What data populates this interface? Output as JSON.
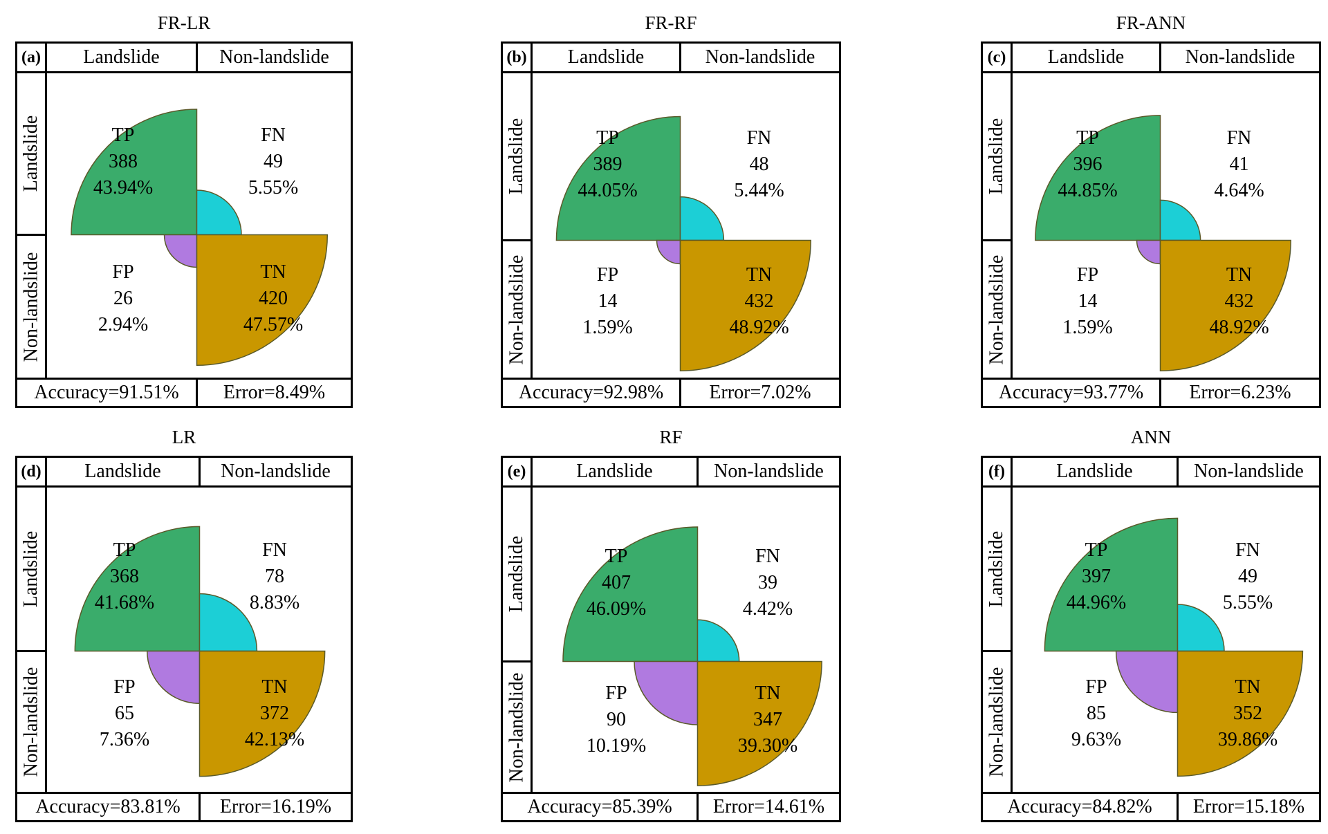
{
  "labels": {
    "header_landslide": "Landslide",
    "header_non_landslide": "Non-landslide",
    "row_landslide": "Landslide",
    "row_non_landslide": "Non-landslide",
    "tp": "TP",
    "fn": "FN",
    "fp": "FP",
    "tn": "TN"
  },
  "colors": {
    "tp": "#3aac6b",
    "fn": "#1ccfd6",
    "fp": "#b07ae0",
    "tn": "#c99700",
    "edge": "#5a5a2a"
  },
  "chart_data": [
    {
      "type": "confusion-matrix-rose",
      "tag": "(a)",
      "title": "FR-LR",
      "tp": 388,
      "fn": 49,
      "fp": 26,
      "tn": 420,
      "tp_pct": "43.94%",
      "fn_pct": "5.55%",
      "fp_pct": "2.94%",
      "tn_pct": "47.57%",
      "accuracy": "Accuracy=91.51%",
      "error": "Error=8.49%"
    },
    {
      "type": "confusion-matrix-rose",
      "tag": "(b)",
      "title": "FR-RF",
      "tp": 389,
      "fn": 48,
      "fp": 14,
      "tn": 432,
      "tp_pct": "44.05%",
      "fn_pct": "5.44%",
      "fp_pct": "1.59%",
      "tn_pct": "48.92%",
      "accuracy": "Accuracy=92.98%",
      "error": "Error=7.02%"
    },
    {
      "type": "confusion-matrix-rose",
      "tag": "(c)",
      "title": "FR-ANN",
      "tp": 396,
      "fn": 41,
      "fp": 14,
      "tn": 432,
      "tp_pct": "44.85%",
      "fn_pct": "4.64%",
      "fp_pct": "1.59%",
      "tn_pct": "48.92%",
      "accuracy": "Accuracy=93.77%",
      "error": "Error=6.23%"
    },
    {
      "type": "confusion-matrix-rose",
      "tag": "(d)",
      "title": "LR",
      "tp": 368,
      "fn": 78,
      "fp": 65,
      "tn": 372,
      "tp_pct": "41.68%",
      "fn_pct": "8.83%",
      "fp_pct": "7.36%",
      "tn_pct": "42.13%",
      "accuracy": "Accuracy=83.81%",
      "error": "Error=16.19%"
    },
    {
      "type": "confusion-matrix-rose",
      "tag": "(e)",
      "title": "RF",
      "tp": 407,
      "fn": 39,
      "fp": 90,
      "tn": 347,
      "tp_pct": "46.09%",
      "fn_pct": "4.42%",
      "fp_pct": "10.19%",
      "tn_pct": "39.30%",
      "accuracy": "Accuracy=85.39%",
      "error": "Error=14.61%"
    },
    {
      "type": "confusion-matrix-rose",
      "tag": "(f)",
      "title": "ANN",
      "tp": 397,
      "fn": 49,
      "fp": 85,
      "tn": 352,
      "tp_pct": "44.96%",
      "fn_pct": "5.55%",
      "fp_pct": "9.63%",
      "tn_pct": "39.86%",
      "accuracy": "Accuracy=84.82%",
      "error": "Error=15.18%"
    }
  ]
}
